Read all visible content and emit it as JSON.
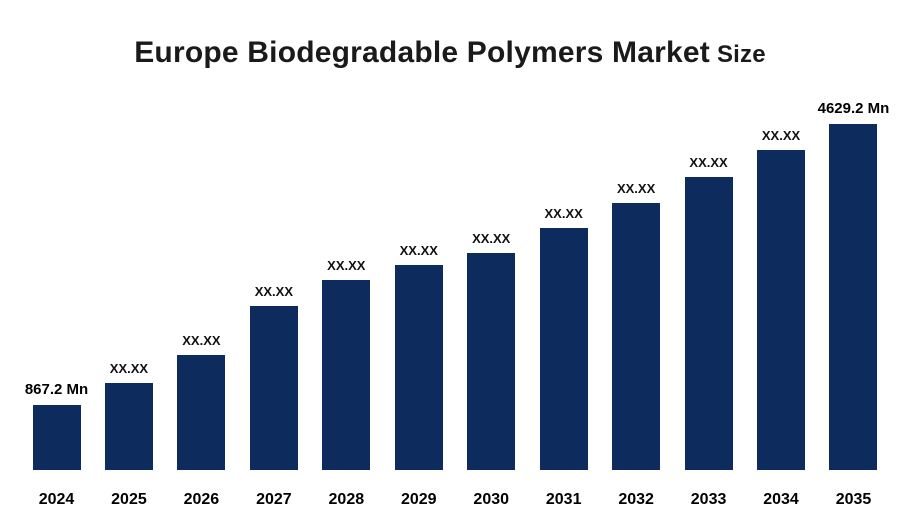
{
  "chart_data": {
    "type": "bar",
    "title": "Europe Biodegradable Polymers Market",
    "title_suffix": "Size",
    "categories": [
      "2024",
      "2025",
      "2026",
      "2027",
      "2028",
      "2029",
      "2030",
      "2031",
      "2032",
      "2033",
      "2034",
      "2035"
    ],
    "values": [
      867.2,
      1165,
      1540,
      2195,
      2545,
      2745,
      2905,
      3240,
      3575,
      3920,
      4280,
      4629.2
    ],
    "value_labels": [
      "867.2 Mn",
      "XX.XX",
      "XX.XX",
      "XX.XX",
      "XX.XX",
      "XX.XX",
      "XX.XX",
      "XX.XX",
      "XX.XX",
      "XX.XX",
      "XX.XX",
      "4629.2 Mn"
    ],
    "first_value_label": "867.2 Mn",
    "last_value_label": "4629.2 Mn",
    "xlabel": "",
    "ylabel": "",
    "ylim": [
      0,
      4629.2
    ],
    "grid": false,
    "legend": false,
    "bar_color": "#0d2b5c",
    "background_color": "#ffffff",
    "text_color": "#111111"
  }
}
